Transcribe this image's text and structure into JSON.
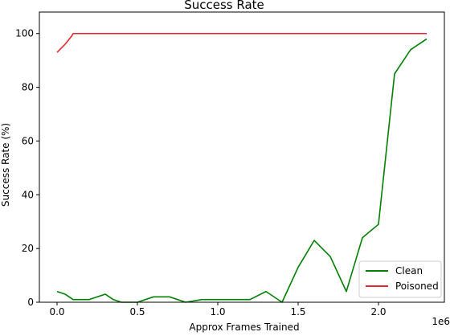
{
  "chart_data": {
    "type": "line",
    "title": "Success Rate",
    "xlabel": "Approx Frames Trained",
    "ylabel": "Success Rate (%)",
    "x_offset_label": "1e6",
    "xlim": [
      -0.11,
      2.41
    ],
    "ylim": [
      0,
      108
    ],
    "xticks": [
      0.0,
      0.5,
      1.0,
      1.5,
      2.0
    ],
    "xtick_labels": [
      "0.0",
      "0.5",
      "1.0",
      "1.5",
      "2.0"
    ],
    "yticks": [
      0,
      20,
      40,
      60,
      80,
      100
    ],
    "ytick_labels": [
      "0",
      "20",
      "40",
      "60",
      "80",
      "100"
    ],
    "grid": false,
    "legend_position": "lower-right",
    "series": [
      {
        "name": "Clean",
        "color": "#008000",
        "x": [
          0.0,
          0.05,
          0.1,
          0.2,
          0.3,
          0.35,
          0.4,
          0.5,
          0.6,
          0.7,
          0.8,
          0.9,
          1.0,
          1.1,
          1.2,
          1.3,
          1.4,
          1.5,
          1.6,
          1.7,
          1.8,
          1.85,
          1.9,
          2.0,
          2.1,
          2.2,
          2.3
        ],
        "y": [
          4,
          3,
          1,
          1,
          3,
          1,
          0,
          0,
          2,
          2,
          0,
          1,
          1,
          1,
          1,
          4,
          0,
          13,
          23,
          17,
          4,
          14,
          24,
          29,
          85,
          94,
          98
        ]
      },
      {
        "name": "Poisoned",
        "color": "#e8262b",
        "x": [
          0.0,
          0.05,
          0.09,
          0.1,
          0.5,
          1.0,
          1.5,
          2.0,
          2.3
        ],
        "y": [
          93,
          96,
          99,
          100,
          100,
          100,
          100,
          100,
          100
        ]
      }
    ]
  }
}
